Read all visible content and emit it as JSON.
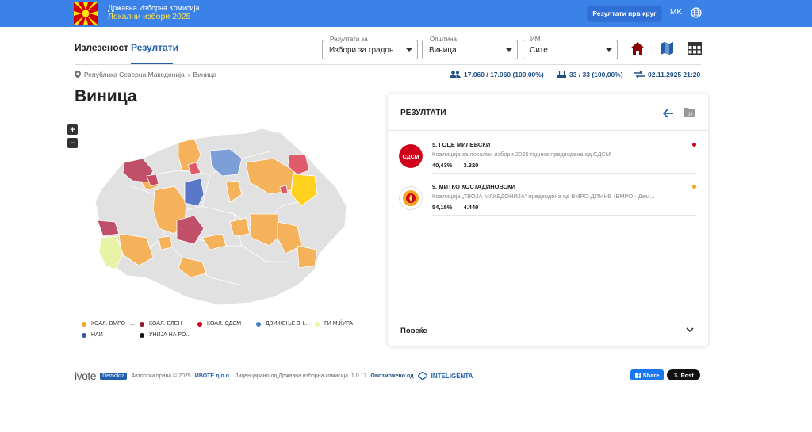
{
  "header": {
    "org_line1": "Државна Изборна Комисија",
    "org_line2": "Локални избори 2025",
    "round_button": "Резултати прв круг",
    "language": "MK",
    "globe_icon": "globe-icon"
  },
  "nav": {
    "tab_turnout": "Излезеност",
    "tab_results": "Резултати"
  },
  "filters": {
    "results_for_label": "Резултати за",
    "results_for_value": "Избори за градон...",
    "municipality_label": "Општина",
    "municipality_value": "Виница",
    "pollstation_label": "ИМ",
    "pollstation_value": "Сите"
  },
  "breadcrumb": {
    "country": "Република Северна Македонија",
    "separator": "›",
    "municipality": "Виница"
  },
  "stats": {
    "voters": "17.060 / 17.060 (100,00%)",
    "stations": "33 / 33 (100,00%)",
    "updated": "02.11.2025 21:20"
  },
  "page_title": "Виница",
  "map": {
    "zoom_in": "+",
    "zoom_out": "−"
  },
  "legend": [
    {
      "label": "КОАЛ. ВМРО - ...",
      "color": "#f5a623"
    },
    {
      "label": "КОАЛ. ВЛЕН",
      "color": "#8e1c2e"
    },
    {
      "label": "КОАЛ. СДСМ",
      "color": "#d0021b"
    },
    {
      "label": "ДВИЖЕЊЕ ЗН...",
      "color": "#4a7fc9"
    },
    {
      "label": "ГИ М.ЌУРА",
      "color": "#e8f3a6"
    },
    {
      "label": "НАИ",
      "color": "#2f57b6"
    },
    {
      "label": "УНИЈА НА РО...",
      "color": "#111111"
    }
  ],
  "results_panel": {
    "title": "РЕЗУЛТАТИ",
    "candidates": [
      {
        "name": "5. ГОЦЕ МИЛЕВСКИ",
        "coalition": "Коалиција за локални избори 2025 година предводена од СДСМ",
        "percent": "40,43%",
        "separator": "|",
        "votes": "3.320",
        "badge_text": "СДСМ",
        "color": "#d0021b"
      },
      {
        "name": "9. МИТКО КОСТАДИНОВСКИ",
        "coalition": "Коалиција „ТВОЈА МАКЕДОНИЈА“ предводена од ВМРО-ДПМНЕ (ВМРО - Дем...",
        "percent": "54,18%",
        "separator": "|",
        "votes": "4.449",
        "color": "#f5a623"
      }
    ],
    "more": "Повеќе"
  },
  "footer": {
    "brand": "ivote",
    "brand_badge": "Demokra",
    "copyright": "Авторски права © 2025",
    "company": "ИВОТЕ д.о.о.",
    "licensed": "Лиценцирано од Државна изборна комисија. 1.0.17",
    "powered": "Овозможено од",
    "powered_brand": "INTELIGENTA",
    "fb_share": "Share",
    "x_post": "Post"
  }
}
